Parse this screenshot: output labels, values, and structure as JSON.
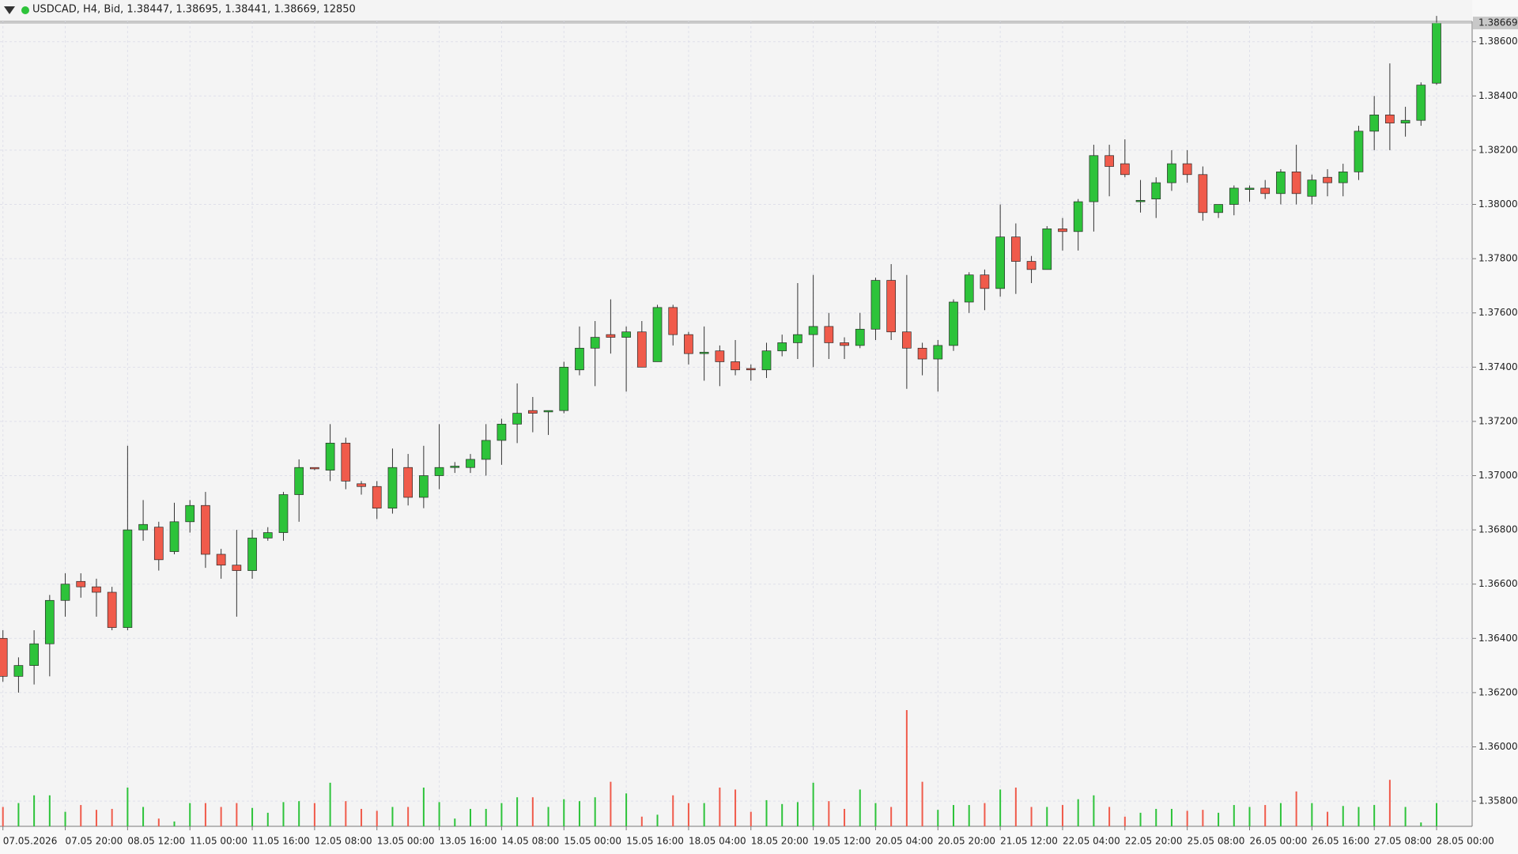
{
  "chart_data": {
    "type": "candlestick",
    "title": "USDCAD, H4, Bid, 1.38447, 1.38695, 1.38441, 1.38669, 12850",
    "up_color": "#2dc33a",
    "down_color": "#f05b4b",
    "grid": true,
    "ylim": [
      1.35707,
      1.38675
    ],
    "yticks": [
      {
        "value": 1.358,
        "label": "1.35800"
      },
      {
        "value": 1.36,
        "label": "1.36000"
      },
      {
        "value": 1.362,
        "label": "1.36200"
      },
      {
        "value": 1.364,
        "label": "1.36400"
      },
      {
        "value": 1.366,
        "label": "1.36600"
      },
      {
        "value": 1.368,
        "label": "1.36800"
      },
      {
        "value": 1.37,
        "label": "1.37000"
      },
      {
        "value": 1.372,
        "label": "1.37200"
      },
      {
        "value": 1.374,
        "label": "1.37400"
      },
      {
        "value": 1.376,
        "label": "1.37600"
      },
      {
        "value": 1.378,
        "label": "1.37800"
      },
      {
        "value": 1.38,
        "label": "1.38000"
      },
      {
        "value": 1.382,
        "label": "1.38200"
      },
      {
        "value": 1.384,
        "label": "1.38400"
      },
      {
        "value": 1.386,
        "label": "1.38600"
      }
    ],
    "categories": [
      "07.05.2026",
      null,
      null,
      null,
      "07.05 20:00",
      null,
      null,
      null,
      "08.05 12:00",
      null,
      null,
      null,
      "11.05 00:00",
      null,
      null,
      null,
      "11.05 16:00",
      null,
      null,
      null,
      "12.05 08:00",
      null,
      null,
      null,
      "13.05 00:00",
      null,
      null,
      null,
      "13.05 16:00",
      null,
      null,
      null,
      "14.05 08:00",
      null,
      null,
      null,
      "15.05 00:00",
      null,
      null,
      null,
      "15.05 16:00",
      null,
      null,
      null,
      "18.05 04:00",
      null,
      null,
      null,
      "18.05 20:00",
      null,
      null,
      null,
      "19.05 12:00",
      null,
      null,
      null,
      "20.05 04:00",
      null,
      null,
      null,
      "20.05 20:00",
      null,
      null,
      null,
      "21.05 12:00",
      null,
      null,
      null,
      "22.05 04:00",
      null,
      null,
      null,
      "22.05 20:00",
      null,
      null,
      null,
      "25.05 08:00",
      null,
      null,
      null,
      "26.05 00:00",
      null,
      null,
      null,
      "26.05 16:00",
      null,
      null,
      null,
      "27.05 08:00",
      null,
      null,
      null,
      "28.05 00:00"
    ],
    "open": [
      1.364,
      1.3626,
      1.363,
      1.3638,
      1.3654,
      1.3661,
      1.3659,
      1.3657,
      1.3644,
      1.368,
      1.3681,
      1.3672,
      1.3683,
      1.3689,
      1.3671,
      1.3667,
      1.3665,
      1.3677,
      1.3679,
      1.3693,
      1.3703,
      1.3702,
      1.3712,
      1.3697,
      1.3696,
      1.3688,
      1.3703,
      1.3692,
      1.37,
      1.3703,
      1.3703,
      1.3706,
      1.3713,
      1.3719,
      1.3724,
      1.37235,
      1.3724,
      1.3739,
      1.3747,
      1.3752,
      1.3751,
      1.3753,
      1.3742,
      1.3762,
      1.3752,
      1.3745,
      1.3746,
      1.3742,
      1.37395,
      1.3739,
      1.3746,
      1.3749,
      1.3752,
      1.3755,
      1.3749,
      1.3748,
      1.3754,
      1.3772,
      1.3753,
      1.3747,
      1.3743,
      1.3748,
      1.3764,
      1.3774,
      1.3769,
      1.3788,
      1.3779,
      1.3776,
      1.3791,
      1.379,
      1.3801,
      1.3818,
      1.3815,
      1.3801,
      1.3802,
      1.3808,
      1.3815,
      1.3811,
      1.3797,
      1.38,
      1.38055,
      1.3806,
      1.3804,
      1.3812,
      1.3803,
      1.381,
      1.3808,
      1.3812,
      1.3827,
      1.3833,
      1.383,
      1.3831,
      1.38447
    ],
    "high": [
      1.3643,
      1.3633,
      1.3643,
      1.3656,
      1.3664,
      1.3664,
      1.3662,
      1.3659,
      1.3711,
      1.3691,
      1.3683,
      1.369,
      1.3691,
      1.3694,
      1.3673,
      1.368,
      1.368,
      1.3681,
      1.3694,
      1.3706,
      1.3703,
      1.3719,
      1.3714,
      1.3698,
      1.3698,
      1.371,
      1.3708,
      1.3711,
      1.3719,
      1.3705,
      1.3708,
      1.3719,
      1.3721,
      1.3734,
      1.3729,
      1.3724,
      1.3742,
      1.3755,
      1.3757,
      1.3765,
      1.3755,
      1.3757,
      1.3763,
      1.3763,
      1.3753,
      1.3755,
      1.3748,
      1.375,
      1.3741,
      1.3749,
      1.3752,
      1.3771,
      1.3774,
      1.376,
      1.3751,
      1.376,
      1.3773,
      1.3778,
      1.3774,
      1.3749,
      1.375,
      1.3765,
      1.3775,
      1.3776,
      1.38,
      1.3793,
      1.3781,
      1.3792,
      1.3795,
      1.3802,
      1.3822,
      1.3822,
      1.3824,
      1.3809,
      1.381,
      1.382,
      1.382,
      1.3814,
      1.38,
      1.3807,
      1.3807,
      1.3809,
      1.3813,
      1.3822,
      1.3811,
      1.3813,
      1.3815,
      1.3829,
      1.384,
      1.3852,
      1.3836,
      1.3845,
      1.38695
    ],
    "low": [
      1.3624,
      1.362,
      1.3623,
      1.3626,
      1.3648,
      1.3655,
      1.3648,
      1.3643,
      1.3643,
      1.3676,
      1.3665,
      1.3671,
      1.3679,
      1.3666,
      1.3662,
      1.3648,
      1.3662,
      1.3676,
      1.3676,
      1.3683,
      1.3702,
      1.3698,
      1.3695,
      1.3693,
      1.3684,
      1.3686,
      1.3689,
      1.3688,
      1.3695,
      1.3701,
      1.3701,
      1.37,
      1.3704,
      1.3712,
      1.3716,
      1.3715,
      1.3723,
      1.3737,
      1.3733,
      1.3745,
      1.3731,
      1.374,
      1.3742,
      1.3748,
      1.3741,
      1.3735,
      1.3733,
      1.3737,
      1.3735,
      1.3736,
      1.3744,
      1.3743,
      1.374,
      1.3743,
      1.3743,
      1.3747,
      1.375,
      1.375,
      1.3732,
      1.3737,
      1.3731,
      1.3746,
      1.376,
      1.3761,
      1.3766,
      1.3767,
      1.3771,
      1.3776,
      1.3783,
      1.3783,
      1.379,
      1.3803,
      1.381,
      1.3797,
      1.3795,
      1.3805,
      1.3808,
      1.3794,
      1.3795,
      1.3796,
      1.3801,
      1.3802,
      1.38,
      1.38,
      1.38,
      1.3803,
      1.3803,
      1.3809,
      1.382,
      1.382,
      1.3825,
      1.3829,
      1.38441
    ],
    "close": [
      1.3626,
      1.363,
      1.3638,
      1.3654,
      1.366,
      1.3659,
      1.3657,
      1.3644,
      1.368,
      1.3682,
      1.3669,
      1.3683,
      1.3689,
      1.3671,
      1.3667,
      1.3665,
      1.3677,
      1.3679,
      1.3693,
      1.3703,
      1.37025,
      1.3712,
      1.3698,
      1.3696,
      1.3688,
      1.3703,
      1.3692,
      1.37,
      1.3703,
      1.37035,
      1.3706,
      1.3713,
      1.3719,
      1.3723,
      1.3723,
      1.3724,
      1.374,
      1.3747,
      1.3751,
      1.3751,
      1.3753,
      1.374,
      1.3762,
      1.3752,
      1.3745,
      1.37455,
      1.3742,
      1.3739,
      1.3739,
      1.3746,
      1.3749,
      1.3752,
      1.3755,
      1.3749,
      1.3748,
      1.3754,
      1.3772,
      1.3753,
      1.3747,
      1.3743,
      1.3748,
      1.3764,
      1.3774,
      1.3769,
      1.3788,
      1.3779,
      1.3776,
      1.3791,
      1.379,
      1.3801,
      1.3818,
      1.3814,
      1.3811,
      1.38015,
      1.3808,
      1.3815,
      1.3811,
      1.3797,
      1.38,
      1.3806,
      1.3806,
      1.3804,
      1.3812,
      1.3804,
      1.3809,
      1.3808,
      1.3812,
      1.3827,
      1.3833,
      1.383,
      1.3831,
      1.3844,
      1.38669
    ],
    "volume": [
      10700,
      12840,
      17120,
      17120,
      8030,
      11770,
      9100,
      9630,
      21400,
      10700,
      4280,
      2680,
      12840,
      12840,
      10700,
      12840,
      10170,
      7490,
      13380,
      13910,
      12840,
      24080,
      13910,
      9630,
      8560,
      10700,
      10700,
      21400,
      13380,
      4280,
      9630,
      9630,
      12840,
      16050,
      16050,
      10700,
      14980,
      13910,
      16050,
      24610,
      18190,
      5350,
      6420,
      17120,
      12840,
      12840,
      21400,
      20330,
      8030,
      14450,
      12310,
      13380,
      24080,
      13910,
      9630,
      20330,
      12840,
      10700,
      64200,
      24610,
      9100,
      11770,
      11770,
      12840,
      20330,
      21400,
      10700,
      10700,
      11770,
      14980,
      17120,
      10700,
      5350,
      7490,
      9630,
      9630,
      8560,
      9100,
      7490,
      11770,
      10700,
      11770,
      12840,
      19260,
      12840,
      8030,
      11240,
      10700,
      11770,
      25680,
      10700,
      2140,
      12850
    ]
  }
}
